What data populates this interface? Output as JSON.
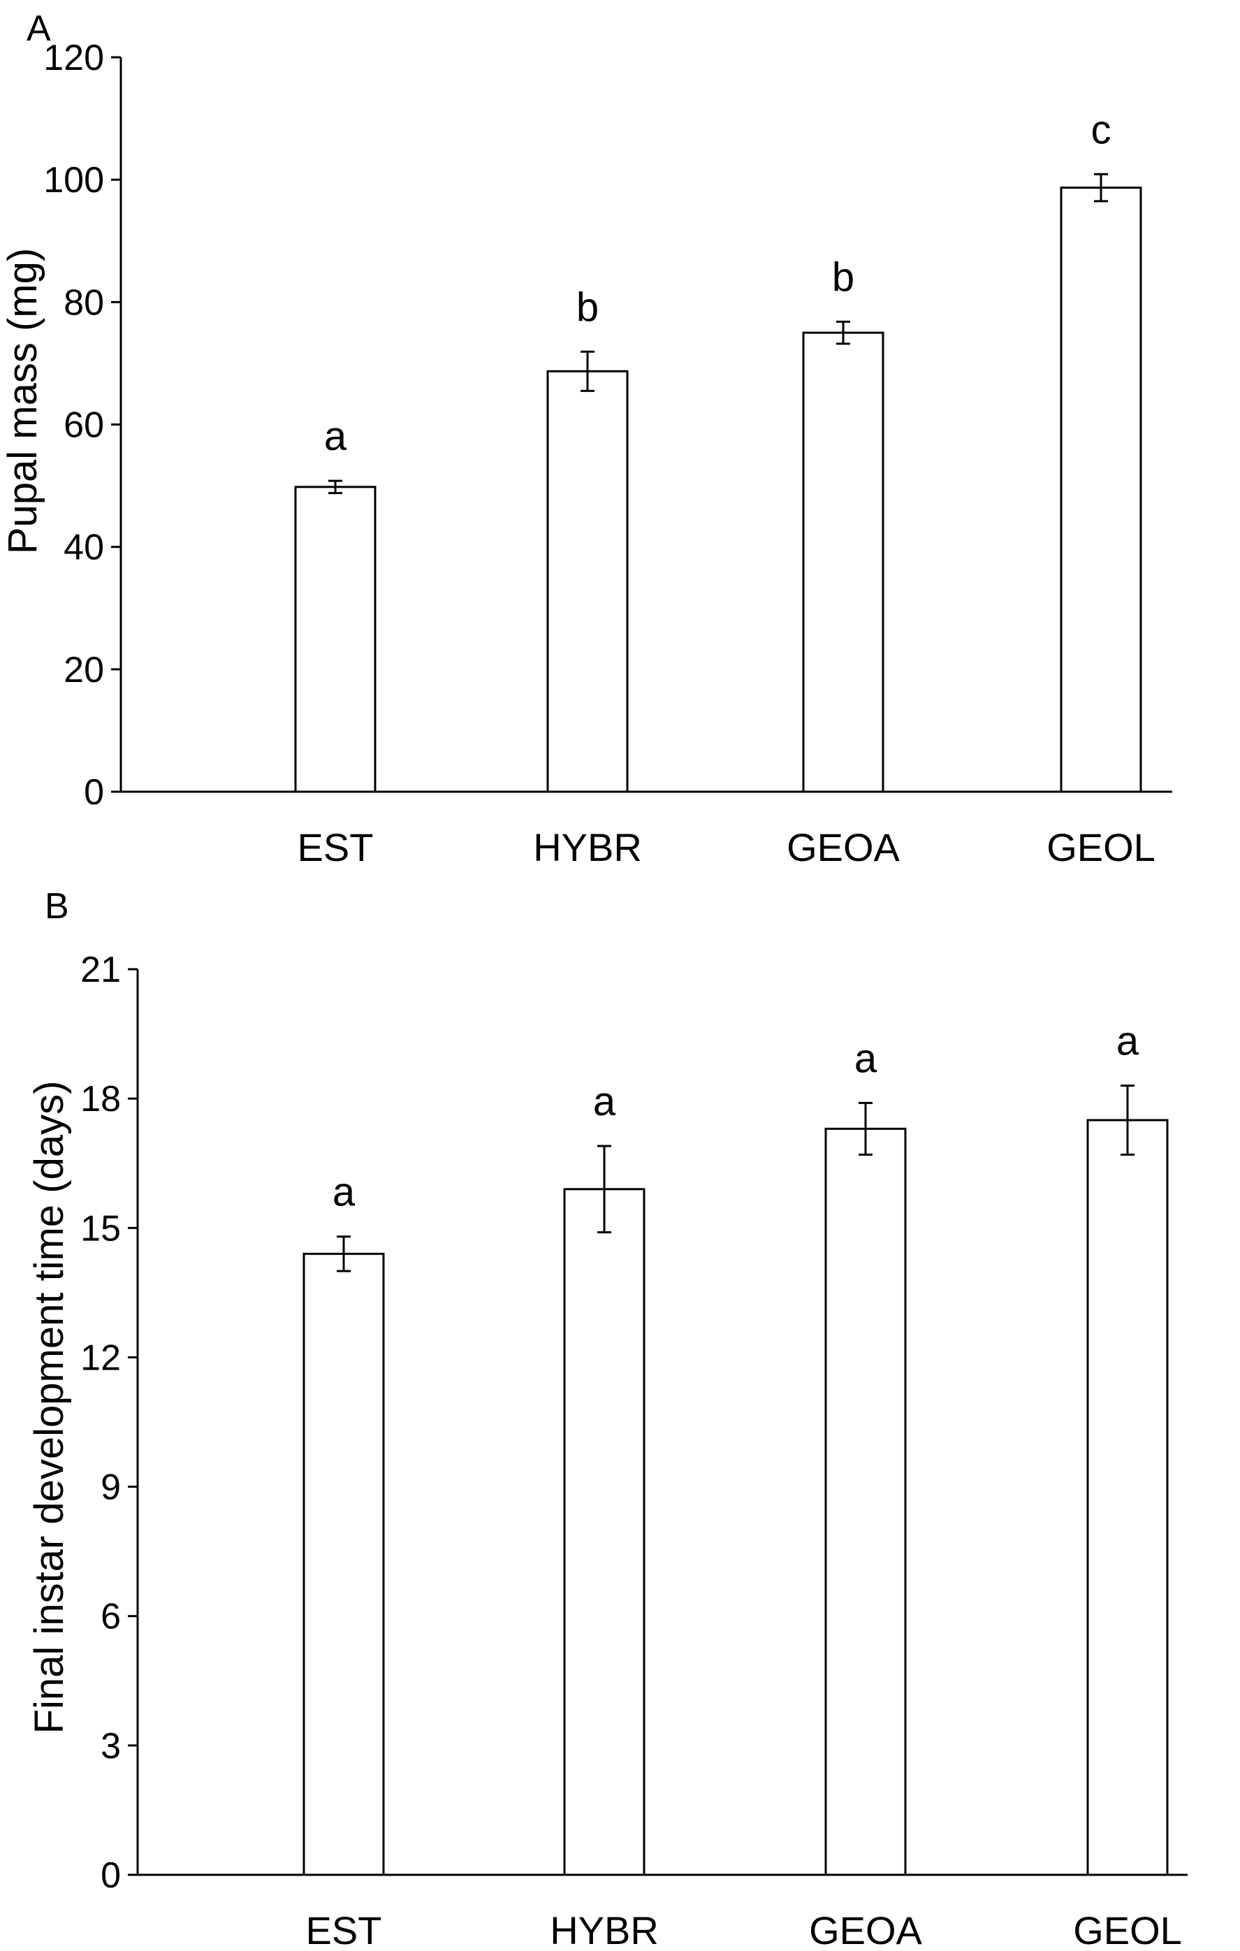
{
  "chart_data": [
    {
      "type": "bar",
      "panel_label": "A",
      "categories": [
        "EST",
        "HYBR",
        "GEOA",
        "GEOL"
      ],
      "values": [
        49.8,
        68.7,
        75.0,
        98.7
      ],
      "errors": [
        1.0,
        3.2,
        1.8,
        2.2
      ],
      "significance_labels": [
        "a",
        "b",
        "b",
        "c"
      ],
      "title": "",
      "xlabel": "",
      "ylabel": "Pupal mass (mg)",
      "ylim": [
        0,
        120
      ],
      "yticks": [
        "0",
        "20",
        "40",
        "60",
        "80",
        "100",
        "120"
      ],
      "grid": false,
      "legend": "none"
    },
    {
      "type": "bar",
      "panel_label": "B",
      "categories": [
        "EST",
        "HYBR",
        "GEOA",
        "GEOL"
      ],
      "values": [
        14.4,
        15.9,
        17.3,
        17.5
      ],
      "errors": [
        0.4,
        1.0,
        0.6,
        0.8
      ],
      "significance_labels": [
        "a",
        "a",
        "a",
        "a"
      ],
      "title": "",
      "xlabel": "",
      "ylabel": "Final instar development time (days)",
      "ylim": [
        0,
        21
      ],
      "yticks": [
        "0",
        "3",
        "6",
        "9",
        "12",
        "15",
        "18",
        "21"
      ],
      "grid": false,
      "legend": "none"
    }
  ]
}
